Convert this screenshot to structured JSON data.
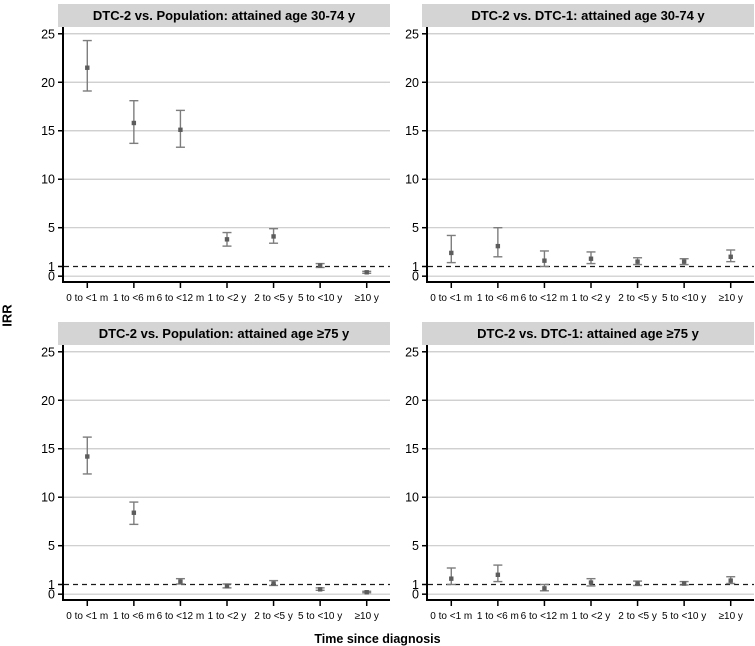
{
  "chart_data": {
    "type": "scatter",
    "subtype": "point-estimates-with-95ci-error-bars",
    "ylabel": "IRR",
    "xlabel": "Time since diagnosis",
    "categories": [
      "0 to <1 m",
      "1 to <6 m",
      "6 to <12 m",
      "1 to <2 y",
      "2 to <5 y",
      "5 to <10 y",
      "≥10 y"
    ],
    "ylim": [
      0,
      25
    ],
    "yticks": [
      0,
      1,
      5,
      10,
      15,
      20,
      25
    ],
    "gridline_ticks": [
      0,
      5,
      10,
      15,
      20,
      25
    ],
    "reference_line_y": 1,
    "grid": "horizontal",
    "legend": "none",
    "panels": [
      {
        "title": "DTC-2 vs. Population: attained age 30-74 y",
        "irr": [
          21.5,
          15.8,
          15.1,
          3.8,
          4.1,
          1.1,
          0.4
        ],
        "ci_low": [
          19.1,
          13.7,
          13.3,
          3.1,
          3.4,
          0.9,
          0.3
        ],
        "ci_high": [
          24.3,
          18.1,
          17.1,
          4.5,
          4.9,
          1.3,
          0.5
        ]
      },
      {
        "title": "DTC-2 vs. DTC-1: attained age 30-74 y",
        "irr": [
          2.4,
          3.1,
          1.6,
          1.8,
          1.5,
          1.5,
          2.0
        ],
        "ci_low": [
          1.4,
          2.0,
          1.0,
          1.3,
          1.2,
          1.2,
          1.5
        ],
        "ci_high": [
          4.2,
          5.0,
          2.6,
          2.5,
          1.9,
          1.8,
          2.7
        ]
      },
      {
        "title": "DTC-2 vs. Population: attained age ≥75 y",
        "irr": [
          14.2,
          8.4,
          1.3,
          0.85,
          1.1,
          0.5,
          0.2
        ],
        "ci_low": [
          12.4,
          7.2,
          1.05,
          0.65,
          0.9,
          0.4,
          0.15
        ],
        "ci_high": [
          16.2,
          9.5,
          1.6,
          1.05,
          1.4,
          0.65,
          0.3
        ]
      },
      {
        "title": "DTC-2 vs. DTC-1: attained age ≥75 y",
        "irr": [
          1.6,
          2.0,
          0.6,
          1.2,
          1.1,
          1.1,
          1.4
        ],
        "ci_low": [
          1.0,
          1.3,
          0.35,
          0.85,
          0.9,
          0.95,
          1.1
        ],
        "ci_high": [
          2.7,
          3.0,
          1.0,
          1.6,
          1.35,
          1.3,
          1.8
        ]
      }
    ],
    "colors": {
      "background": "#ffffff",
      "title_strip_bg": "#d4d4d4",
      "gridline": "#c9c9c9",
      "axis": "#000000",
      "reference_line": "#1a1a1a",
      "error_bar": "#7d7d7d",
      "point": "#5c5c5c",
      "text": "#000000"
    }
  }
}
